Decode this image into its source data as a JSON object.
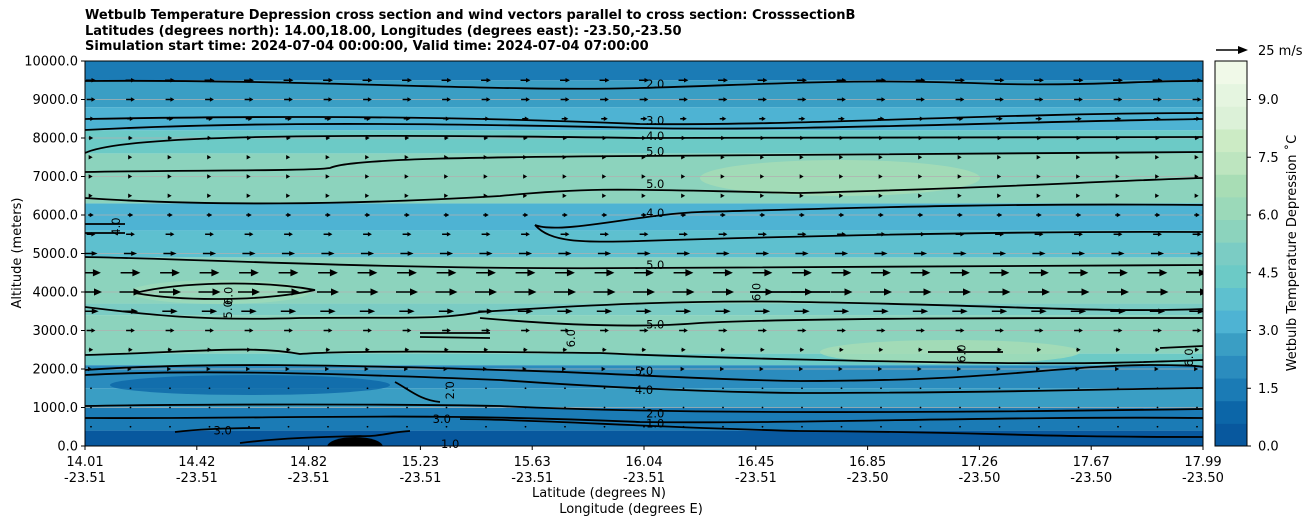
{
  "title": {
    "line1": "Wetbulb Temperature Depression cross section and wind vectors parallel to cross section: CrosssectionB",
    "line2": "Latitudes (degrees north): 14.00,18.00, Longitudes (degrees east): -23.50,-23.50",
    "line3": "Simulation start time: 2024-07-04 00:00:00, Valid time: 2024-07-04 07:00:00"
  },
  "colors": {
    "scale": [
      "#08589e",
      "#0c66a8",
      "#1b7bb5",
      "#2b8cbe",
      "#3a9ec4",
      "#4eb3d3",
      "#5ec0cf",
      "#6ccac6",
      "#7bccc4",
      "#8cd3bd",
      "#9bd9b9",
      "#a8ddb5",
      "#bde5bf",
      "#ccebc5",
      "#dcf1d8",
      "#e5f5e0",
      "#f0f9e8"
    ],
    "contour": "#000000",
    "grid": "#b0b0b0"
  },
  "chart_data": {
    "type": "heatmap",
    "xlabel": "Latitude (degrees N)",
    "xlabel2": "Longitude (degrees E)",
    "ylabel": "Altitude (meters)",
    "ylim": [
      0,
      10000
    ],
    "yticks": [
      {
        "value": 0,
        "label": "0.0"
      },
      {
        "value": 1000,
        "label": "1000.0"
      },
      {
        "value": 2000,
        "label": "2000.0"
      },
      {
        "value": 3000,
        "label": "3000.0"
      },
      {
        "value": 4000,
        "label": "4000.0"
      },
      {
        "value": 5000,
        "label": "5000.0"
      },
      {
        "value": 6000,
        "label": "6000.0"
      },
      {
        "value": 7000,
        "label": "7000.0"
      },
      {
        "value": 8000,
        "label": "8000.0"
      },
      {
        "value": 9000,
        "label": "9000.0"
      },
      {
        "value": 10000,
        "label": "10000.0"
      }
    ],
    "xticks": [
      {
        "lat": "14.01",
        "lon": "-23.51"
      },
      {
        "lat": "14.42",
        "lon": "-23.51"
      },
      {
        "lat": "14.82",
        "lon": "-23.51"
      },
      {
        "lat": "15.23",
        "lon": "-23.51"
      },
      {
        "lat": "15.63",
        "lon": "-23.51"
      },
      {
        "lat": "16.04",
        "lon": "-23.51"
      },
      {
        "lat": "16.45",
        "lon": "-23.51"
      },
      {
        "lat": "16.85",
        "lon": "-23.50"
      },
      {
        "lat": "17.26",
        "lon": "-23.50"
      },
      {
        "lat": "17.67",
        "lon": "-23.50"
      },
      {
        "lat": "17.99",
        "lon": "-23.50"
      }
    ],
    "xrange": [
      14.01,
      17.99
    ],
    "grid": true,
    "colorbar": {
      "label": "Wetbulb Temperature Depression ˚C",
      "range": [
        0,
        10
      ],
      "ticks": [
        {
          "value": 0,
          "label": "0.0"
        },
        {
          "value": 1.5,
          "label": "1.5"
        },
        {
          "value": 3,
          "label": "3.0"
        },
        {
          "value": 4.5,
          "label": "4.5"
        },
        {
          "value": 6,
          "label": "6.0"
        },
        {
          "value": 7.5,
          "label": "7.5"
        },
        {
          "value": 9,
          "label": "9.0"
        }
      ]
    },
    "wind_key": "25 m/s",
    "wind_levels": [
      {
        "alt": 9500,
        "speed": 9
      },
      {
        "alt": 9000,
        "speed": 8
      },
      {
        "alt": 8500,
        "speed": 6
      },
      {
        "alt": 8000,
        "speed": 4
      },
      {
        "alt": 7500,
        "speed": 3
      },
      {
        "alt": 7000,
        "speed": 3
      },
      {
        "alt": 6500,
        "speed": 3
      },
      {
        "alt": 6000,
        "speed": 5
      },
      {
        "alt": 5500,
        "speed": 8
      },
      {
        "alt": 5000,
        "speed": 12
      },
      {
        "alt": 4500,
        "speed": 18
      },
      {
        "alt": 4000,
        "speed": 20
      },
      {
        "alt": 3500,
        "speed": 14
      },
      {
        "alt": 3000,
        "speed": 8
      },
      {
        "alt": 2500,
        "speed": 4
      },
      {
        "alt": 2000,
        "speed": 2
      },
      {
        "alt": 1500,
        "speed": 0.6
      },
      {
        "alt": 1000,
        "speed": 0.4
      },
      {
        "alt": 500,
        "speed": 0.3
      }
    ],
    "bands": [
      {
        "bottom": 0,
        "top": 400,
        "value": 0.5
      },
      {
        "bottom": 400,
        "top": 1000,
        "value": 1.5
      },
      {
        "bottom": 1000,
        "top": 1500,
        "value": 2.6
      },
      {
        "bottom": 1500,
        "top": 2100,
        "value": 2.0
      },
      {
        "bottom": 2100,
        "top": 2400,
        "value": 4.2
      },
      {
        "bottom": 2400,
        "top": 3400,
        "value": 5.6
      },
      {
        "bottom": 3400,
        "top": 3700,
        "value": 4.8
      },
      {
        "bottom": 3700,
        "top": 4900,
        "value": 5.5
      },
      {
        "bottom": 4900,
        "top": 5600,
        "value": 3.8
      },
      {
        "bottom": 5600,
        "top": 6300,
        "value": 3.3
      },
      {
        "bottom": 6300,
        "top": 7600,
        "value": 5.6
      },
      {
        "bottom": 7600,
        "top": 8200,
        "value": 4.6
      },
      {
        "bottom": 8200,
        "top": 8800,
        "value": 3.2
      },
      {
        "bottom": 8800,
        "top": 9500,
        "value": 2.4
      },
      {
        "bottom": 9500,
        "top": 10000,
        "value": 1.6
      }
    ],
    "contour_labels": [
      {
        "text": "2.0",
        "lat": 16.04,
        "alt": 9400
      },
      {
        "text": "3.0",
        "lat": 16.04,
        "alt": 8450
      },
      {
        "text": "4.0",
        "lat": 16.04,
        "alt": 8050
      },
      {
        "text": "5.0",
        "lat": 16.04,
        "alt": 7650
      },
      {
        "text": "5.0",
        "lat": 16.04,
        "alt": 6800
      },
      {
        "text": "4.0",
        "lat": 16.04,
        "alt": 6050
      },
      {
        "text": "5.0",
        "lat": 16.04,
        "alt": 4700
      },
      {
        "text": "5.0",
        "lat": 16.04,
        "alt": 3150
      },
      {
        "text": "5.0",
        "lat": 16.0,
        "alt": 1950
      },
      {
        "text": "4.0",
        "lat": 16.0,
        "alt": 1450
      },
      {
        "text": "2.0",
        "lat": 16.04,
        "alt": 850
      },
      {
        "text": "1.0",
        "lat": 16.04,
        "alt": 580
      },
      {
        "text": "4.0",
        "lat": 14.12,
        "alt": 5700
      },
      {
        "text": "6.0",
        "lat": 14.52,
        "alt": 3900
      },
      {
        "text": "5.0",
        "lat": 14.52,
        "alt": 3550
      },
      {
        "text": "6.0",
        "lat": 15.74,
        "alt": 2800
      },
      {
        "text": "6.0",
        "lat": 16.4,
        "alt": 4000
      },
      {
        "text": "6.0",
        "lat": 17.13,
        "alt": 2400
      },
      {
        "text": "6.0",
        "lat": 17.94,
        "alt": 2300
      },
      {
        "text": "2.0",
        "lat": 15.31,
        "alt": 1450
      },
      {
        "text": "3.0",
        "lat": 15.28,
        "alt": 700
      },
      {
        "text": "3.0",
        "lat": 14.5,
        "alt": 400
      },
      {
        "text": "1.0",
        "lat": 15.31,
        "alt": 50
      }
    ]
  }
}
